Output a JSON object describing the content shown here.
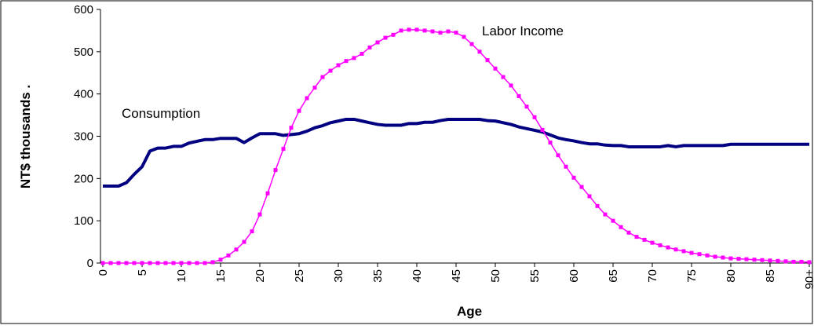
{
  "chart_data": {
    "type": "line",
    "x_label": "Age",
    "y_label": "NT$ thousands  .",
    "categories": [
      "0",
      null,
      null,
      null,
      null,
      "5",
      null,
      null,
      null,
      null,
      "10",
      null,
      null,
      null,
      null,
      "15",
      null,
      null,
      null,
      null,
      "20",
      null,
      null,
      null,
      null,
      "25",
      null,
      null,
      null,
      null,
      "30",
      null,
      null,
      null,
      null,
      "35",
      null,
      null,
      null,
      null,
      "40",
      null,
      null,
      null,
      null,
      "45",
      null,
      null,
      null,
      null,
      "50",
      null,
      null,
      null,
      null,
      "55",
      null,
      null,
      null,
      null,
      "60",
      null,
      null,
      null,
      null,
      "65",
      null,
      null,
      null,
      null,
      "70",
      null,
      null,
      null,
      null,
      "75",
      null,
      null,
      null,
      null,
      "80",
      null,
      null,
      null,
      null,
      "85",
      null,
      null,
      null,
      null,
      "90+"
    ],
    "series": [
      {
        "name": "Consumption",
        "color": "#000080",
        "marker": false,
        "values": [
          182,
          182,
          182,
          190,
          210,
          228,
          265,
          272,
          272,
          276,
          276,
          284,
          288,
          292,
          292,
          295,
          295,
          295,
          285,
          296,
          306,
          306,
          306,
          302,
          304,
          306,
          312,
          320,
          325,
          332,
          336,
          340,
          340,
          336,
          332,
          328,
          326,
          326,
          326,
          330,
          330,
          333,
          333,
          337,
          340,
          340,
          340,
          340,
          340,
          337,
          336,
          332,
          328,
          322,
          318,
          314,
          310,
          303,
          296,
          292,
          289,
          285,
          282,
          282,
          279,
          278,
          278,
          275,
          275,
          275,
          275,
          275,
          278,
          275,
          278,
          278,
          278,
          278,
          278,
          278,
          281,
          281,
          281,
          281,
          281,
          281,
          281,
          281,
          281,
          281,
          281
        ]
      },
      {
        "name": "Labor Income",
        "color": "#ff00ff",
        "marker": true,
        "values": [
          0,
          0,
          0,
          0,
          0,
          0,
          0,
          0,
          0,
          0,
          0,
          0,
          0,
          0,
          2,
          8,
          18,
          32,
          50,
          75,
          115,
          165,
          220,
          270,
          320,
          360,
          390,
          415,
          440,
          455,
          468,
          478,
          485,
          495,
          510,
          522,
          533,
          540,
          550,
          552,
          552,
          550,
          548,
          545,
          548,
          545,
          535,
          518,
          500,
          480,
          460,
          440,
          420,
          395,
          370,
          345,
          315,
          285,
          255,
          228,
          202,
          180,
          158,
          135,
          115,
          100,
          85,
          72,
          62,
          55,
          48,
          42,
          37,
          32,
          28,
          24,
          21,
          18,
          15,
          13,
          11,
          10,
          9,
          8,
          7,
          6,
          5,
          4,
          3,
          3,
          2
        ]
      }
    ],
    "ylim": [
      0,
      600
    ],
    "yticks": [
      0,
      100,
      200,
      300,
      400,
      500,
      600
    ]
  }
}
